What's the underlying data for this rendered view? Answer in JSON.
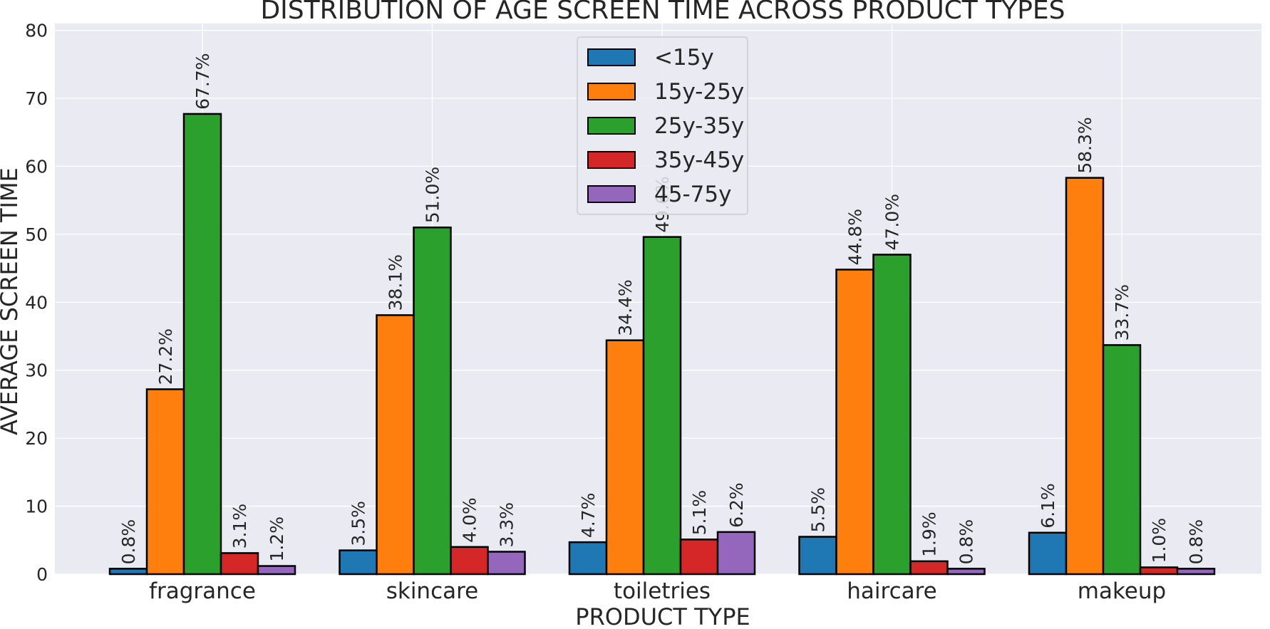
{
  "chart_data": {
    "type": "bar",
    "title": "DISTRIBUTION OF AGE SCREEN TIME ACROSS PRODUCT TYPES",
    "xlabel": "PRODUCT TYPE",
    "ylabel": "AVERAGE SCREEN TIME",
    "categories": [
      "fragrance",
      "skincare",
      "toiletries",
      "haircare",
      "makeup"
    ],
    "ylim": [
      0,
      81
    ],
    "yticks": [
      0,
      10,
      20,
      30,
      40,
      50,
      60,
      70,
      80
    ],
    "grid": true,
    "legend_position": "top-center",
    "background_color": "#eaeaf2",
    "series": [
      {
        "name": "<15y",
        "color": "#1f77b4",
        "values": [
          0.8,
          3.5,
          4.7,
          5.5,
          6.1
        ],
        "labels": [
          "0.8%",
          "3.5%",
          "4.7%",
          "5.5%",
          "6.1%"
        ]
      },
      {
        "name": "15y-25y",
        "color": "#ff7f0e",
        "values": [
          27.2,
          38.1,
          34.4,
          44.8,
          58.3
        ],
        "labels": [
          "27.2%",
          "38.1%",
          "34.4%",
          "44.8%",
          "58.3%"
        ]
      },
      {
        "name": "25y-35y",
        "color": "#2ca02c",
        "values": [
          67.7,
          51.0,
          49.6,
          47.0,
          33.7
        ],
        "labels": [
          "67.7%",
          "51.0%",
          "49.6%",
          "47.0%",
          "33.7%"
        ]
      },
      {
        "name": "35y-45y",
        "color": "#d62728",
        "values": [
          3.1,
          4.0,
          5.1,
          1.9,
          1.0
        ],
        "labels": [
          "3.1%",
          "4.0%",
          "5.1%",
          "1.9%",
          "1.0%"
        ]
      },
      {
        "name": "45-75y",
        "color": "#9467bd",
        "values": [
          1.2,
          3.3,
          6.2,
          0.8,
          0.8
        ],
        "labels": [
          "1.2%",
          "3.3%",
          "6.2%",
          "0.8%",
          "0.8%"
        ]
      }
    ]
  }
}
